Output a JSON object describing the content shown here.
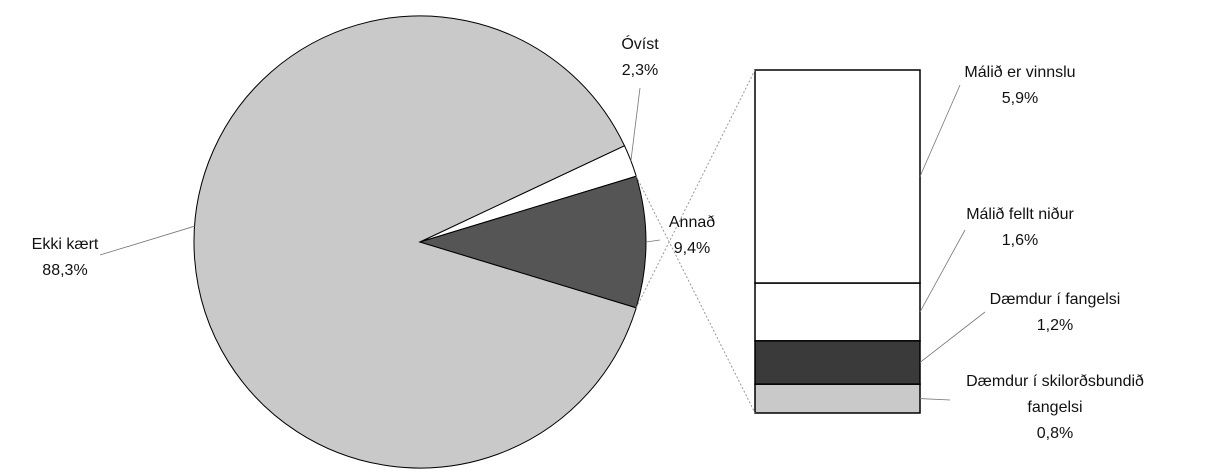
{
  "chart_data": {
    "type": "pie-of-bar",
    "categories": [
      "Ekki kært",
      "Óvíst",
      "Annað"
    ],
    "values": [
      88.3,
      2.3,
      9.4
    ],
    "value_labels": [
      "88,3%",
      "2,3%",
      "9,4%"
    ],
    "colors": [
      "#c9c9c9",
      "#ffffff",
      "#555555"
    ],
    "breakdown": {
      "categories": [
        "Málið er vinnslu",
        "Málið fellt niður",
        "Dæmdur í fangelsi",
        "Dæmdur í skilorðsbundið fangelsi"
      ],
      "values": [
        5.9,
        1.6,
        1.2,
        0.8
      ],
      "value_labels": [
        "5,9%",
        "1,6%",
        "1,2%",
        "0,8%"
      ],
      "colors": [
        "#ffffff",
        "#ffffff",
        "#3a3a3a",
        "#c9c9c9"
      ]
    }
  }
}
